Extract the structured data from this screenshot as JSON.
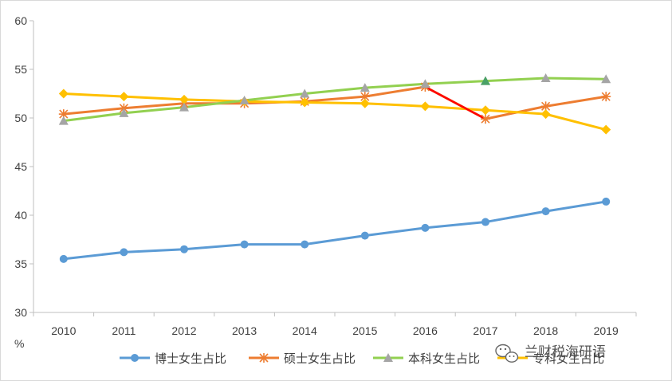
{
  "chart_data": {
    "type": "line",
    "categories": [
      "2010",
      "2011",
      "2012",
      "2013",
      "2014",
      "2015",
      "2016",
      "2017",
      "2018",
      "2019"
    ],
    "ylim": [
      30,
      60
    ],
    "yticks": [
      30,
      35,
      40,
      45,
      50,
      55,
      60
    ],
    "ylabel": "%",
    "xlabel": "",
    "grid": false,
    "legend_position": "bottom",
    "series": [
      {
        "name": "博士女生占比",
        "color": "#5b9bd5",
        "marker": "circle",
        "values": [
          35.5,
          36.2,
          36.5,
          37.0,
          37.0,
          37.9,
          38.7,
          39.3,
          40.4,
          41.4
        ]
      },
      {
        "name": "硕士女生占比",
        "color": "#ed7d31",
        "marker": "star",
        "values": [
          50.4,
          51.0,
          51.5,
          51.5,
          51.7,
          52.2,
          53.2,
          49.9,
          51.2,
          52.2
        ]
      },
      {
        "name": "本科女生占比",
        "color": "#92d050",
        "marker": "triangle",
        "values": [
          49.7,
          50.5,
          51.1,
          51.8,
          52.5,
          53.1,
          53.5,
          53.8,
          54.1,
          54.0
        ]
      },
      {
        "name": "专科女生占比",
        "color": "#ffc000",
        "marker": "diamond",
        "values": [
          52.5,
          52.2,
          51.9,
          51.7,
          51.6,
          51.5,
          51.2,
          50.8,
          50.4,
          48.8
        ]
      }
    ],
    "annotations": [
      {
        "type": "highlight-segment",
        "series": "硕士女生占比",
        "from": "2016",
        "to": "2017",
        "color": "#ff0000"
      }
    ]
  },
  "watermark": {
    "text": "兰财税海研语",
    "icon": "wechat-icon"
  }
}
